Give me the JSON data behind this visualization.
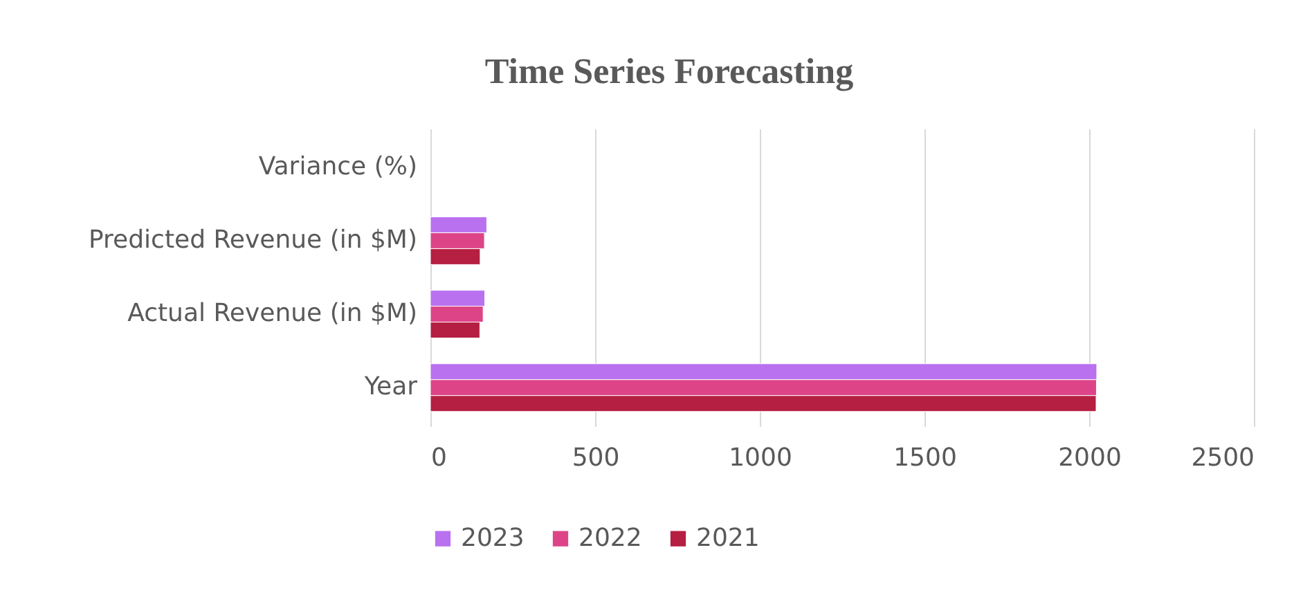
{
  "chart_data": {
    "type": "bar",
    "orientation": "horizontal",
    "title": "Time Series Forecasting",
    "categories": [
      "Variance (%)",
      "Predicted Revenue (in $M)",
      "Actual Revenue (in $M)",
      "Year"
    ],
    "series": [
      {
        "name": "2023",
        "color": "#b971ef",
        "values": [
          null,
          171,
          165,
          2023
        ]
      },
      {
        "name": "2022",
        "color": "#dd4488",
        "values": [
          null,
          164,
          160,
          2022
        ]
      },
      {
        "name": "2021",
        "color": "#b51f42",
        "values": [
          null,
          151,
          150,
          2021
        ]
      }
    ],
    "xlim": [
      0,
      2500
    ],
    "xticks": [
      0,
      500,
      1000,
      1500,
      2000,
      2500
    ],
    "grid": "x",
    "legend": "bottom"
  }
}
